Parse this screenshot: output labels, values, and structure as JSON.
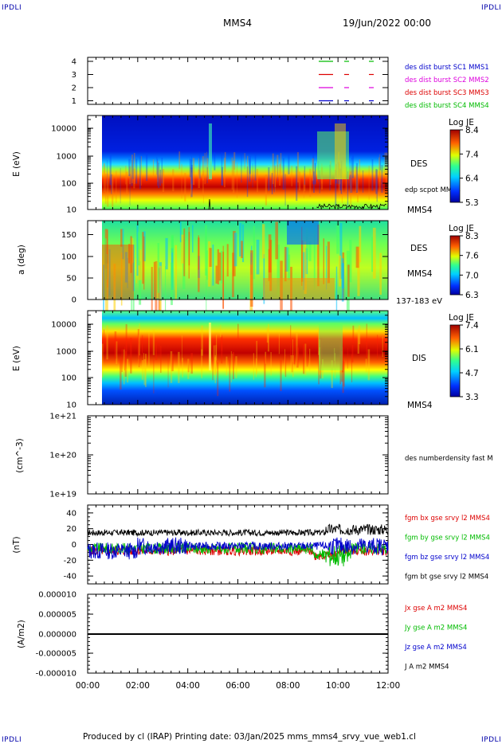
{
  "header": {
    "corner_label": "IPDLI",
    "spacecraft": "MMS4",
    "datetime": "19/Jun/2022 00:00"
  },
  "footer": {
    "text": "Produced by cl (IRAP)   Printing date: 03/Jan/2025   mms_mms4_srvy_vue_web1.cl"
  },
  "x_axis": {
    "ticks": [
      "00:00",
      "02:00",
      "04:00",
      "06:00",
      "08:00",
      "10:00",
      "12:00"
    ]
  },
  "colors": {
    "red": "#dd0000",
    "green": "#00bb00",
    "blue": "#0000cc",
    "magenta": "#dd00dd",
    "black": "#000000"
  },
  "panels": {
    "burst": {
      "yticks": [
        "4",
        "3",
        "2",
        "1"
      ],
      "legend": [
        {
          "text": "des dist burst SC1 MMS1",
          "color": "#0000cc"
        },
        {
          "text": "des dist burst SC2 MMS2",
          "color": "#dd00dd"
        },
        {
          "text": "des dist burst SC3 MMS3",
          "color": "#dd0000"
        },
        {
          "text": "des dist burst SC4 MMS4",
          "color": "#00bb00"
        }
      ]
    },
    "des_energy": {
      "ylabel": "E (eV)",
      "yticks": [
        "10000",
        "1000",
        "100",
        "10"
      ],
      "label_species": "DES",
      "label_scpot": "edp scpot MMS4",
      "label_mms": "MMS4",
      "colorbar_title": "Log JE",
      "colorbar_ticks": [
        "8.4",
        "7.4",
        "6.4",
        "5.3"
      ]
    },
    "des_pitch": {
      "ylabel": "a (deg)",
      "yticks": [
        "150",
        "100",
        "50",
        "0"
      ],
      "label_species": "DES",
      "label_mms": "MMS4",
      "label_energy": "137-183 eV",
      "colorbar_title": "Log JE",
      "colorbar_ticks": [
        "8.3",
        "7.6",
        "7.0",
        "6.3"
      ]
    },
    "dis_energy": {
      "ylabel": "E (eV)",
      "yticks": [
        "10000",
        "1000",
        "100",
        "10"
      ],
      "label_species": "DIS",
      "label_mms": "MMS4",
      "colorbar_title": "Log JE",
      "colorbar_ticks": [
        "7.4",
        "6.1",
        "4.7",
        "3.3"
      ]
    },
    "density": {
      "ylabel": "(cm^-3)",
      "yticks": [
        "1e+21",
        "1e+20",
        "1e+19"
      ],
      "legend": "des numberdensity fast M"
    },
    "field": {
      "ylabel": "(nT)",
      "yticks": [
        "40",
        "20",
        "0",
        "-20",
        "-40"
      ],
      "legend": [
        {
          "text": "fgm bx gse srvy l2 MMS4",
          "color": "#dd0000"
        },
        {
          "text": "fgm by gse srvy l2 MMS4",
          "color": "#00bb00"
        },
        {
          "text": "fgm bz gse srvy l2 MMS4",
          "color": "#0000cc"
        },
        {
          "text": "fgm bt gse srvy l2 MMS4",
          "color": "#000000"
        }
      ]
    },
    "current": {
      "ylabel": "(A/m2)",
      "yticks": [
        "0.000010",
        "0.000005",
        "0.000000",
        "-0.000005",
        "-0.000010"
      ],
      "legend": [
        {
          "text": "Jx gse A m2 MMS4",
          "color": "#dd0000"
        },
        {
          "text": "Jy gse A m2 MMS4",
          "color": "#00bb00"
        },
        {
          "text": "Jz gse A m2 MMS4",
          "color": "#0000cc"
        },
        {
          "text": "J A m2 MMS4",
          "color": "#000000"
        }
      ]
    }
  },
  "chart_data": [
    {
      "type": "heatmap",
      "panel": "des_energy",
      "x_range": [
        "00:00",
        "12:00"
      ],
      "y_range": [
        10,
        30000
      ],
      "y_scale": "log",
      "z_label": "Log JE",
      "z_range": [
        5.3,
        8.4
      ]
    },
    {
      "type": "heatmap",
      "panel": "des_pitch",
      "x_range": [
        "00:00",
        "12:00"
      ],
      "y_range": [
        0,
        180
      ],
      "z_label": "Log JE",
      "z_range": [
        6.3,
        8.3
      ]
    },
    {
      "type": "heatmap",
      "panel": "dis_energy",
      "x_range": [
        "00:00",
        "12:00"
      ],
      "y_range": [
        10,
        30000
      ],
      "y_scale": "log",
      "z_label": "Log JE",
      "z_range": [
        3.3,
        7.4
      ]
    },
    {
      "type": "line",
      "panel": "field",
      "x_range": [
        "00:00",
        "12:00"
      ],
      "y_range": [
        -50,
        50
      ],
      "series": [
        {
          "name": "fgm bt gse srvy l2 MMS4",
          "approx_level": 15
        },
        {
          "name": "fgm bx gse srvy l2 MMS4",
          "approx_level": -8
        },
        {
          "name": "fgm by gse srvy l2 MMS4",
          "approx_level": -5
        },
        {
          "name": "fgm bz gse srvy l2 MMS4",
          "approx_level": -2
        }
      ]
    },
    {
      "type": "line",
      "panel": "current",
      "x_range": [
        "00:00",
        "12:00"
      ],
      "y_range": [
        -1e-05,
        1e-05
      ],
      "series": [
        {
          "name": "J A m2 MMS4",
          "approx_level": 0
        }
      ]
    }
  ]
}
